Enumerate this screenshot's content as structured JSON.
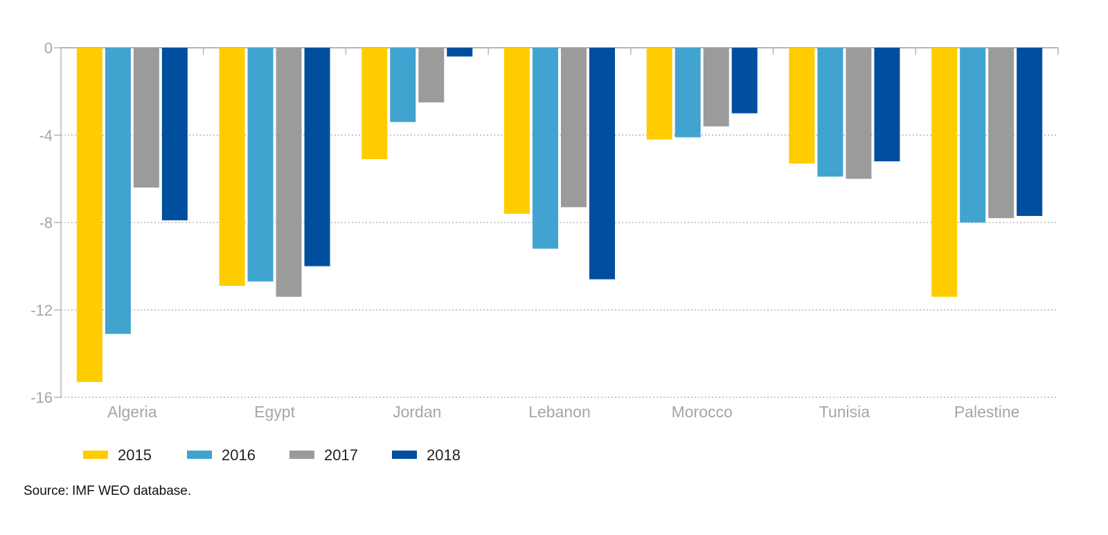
{
  "chart_data": {
    "type": "bar",
    "title": "",
    "xlabel": "",
    "ylabel": "",
    "categories": [
      "Algeria",
      "Egypt",
      "Jordan",
      "Lebanon",
      "Morocco",
      "Tunisia",
      "Palestine"
    ],
    "series": [
      {
        "name": "2015",
        "color": "#ffcc00",
        "values": [
          -15.3,
          -10.9,
          -5.1,
          -7.6,
          -4.2,
          -5.3,
          -11.4
        ]
      },
      {
        "name": "2016",
        "color": "#41a3d0",
        "values": [
          -13.1,
          -10.7,
          -3.4,
          -9.2,
          -4.1,
          -5.9,
          -8.0
        ]
      },
      {
        "name": "2017",
        "color": "#9b9b9b",
        "values": [
          -6.4,
          -11.4,
          -2.5,
          -7.3,
          -3.6,
          -6.0,
          -7.8
        ]
      },
      {
        "name": "2018",
        "color": "#004f9f",
        "values": [
          -7.9,
          -10.0,
          -0.4,
          -10.6,
          -3.0,
          -5.2,
          -7.7
        ]
      }
    ],
    "ylim": [
      -16,
      0
    ],
    "yticks": [
      0,
      -4,
      -8,
      -12,
      -16
    ],
    "grid": true,
    "legend_position": "bottom-left"
  },
  "source": {
    "label": "Source:",
    "text": "IMF WEO database."
  }
}
